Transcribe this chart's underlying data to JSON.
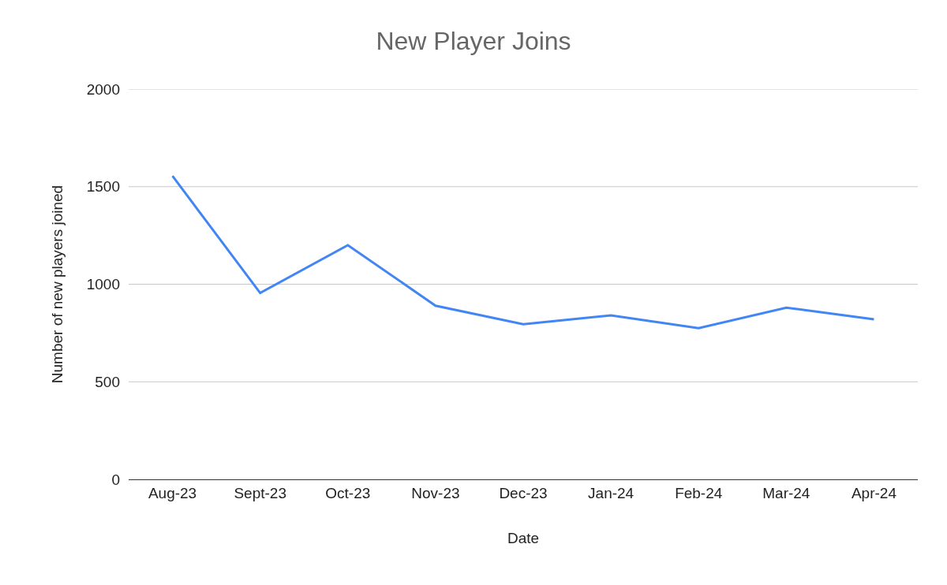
{
  "chart_data": {
    "type": "line",
    "title": "New Player Joins",
    "xlabel": "Date",
    "ylabel": "Number of new players joined",
    "categories": [
      "Aug-23",
      "Sept-23",
      "Oct-23",
      "Nov-23",
      "Dec-23",
      "Jan-24",
      "Feb-24",
      "Mar-24",
      "Apr-24"
    ],
    "series": [
      {
        "color": "#4285f4",
        "values": [
          1555,
          955,
          1200,
          890,
          795,
          840,
          775,
          880,
          820
        ]
      }
    ],
    "ylim": [
      0,
      2000
    ],
    "yticks": [
      0,
      500,
      1000,
      1500,
      2000
    ],
    "grid": "y",
    "marker": "none",
    "line_style": "solid"
  }
}
